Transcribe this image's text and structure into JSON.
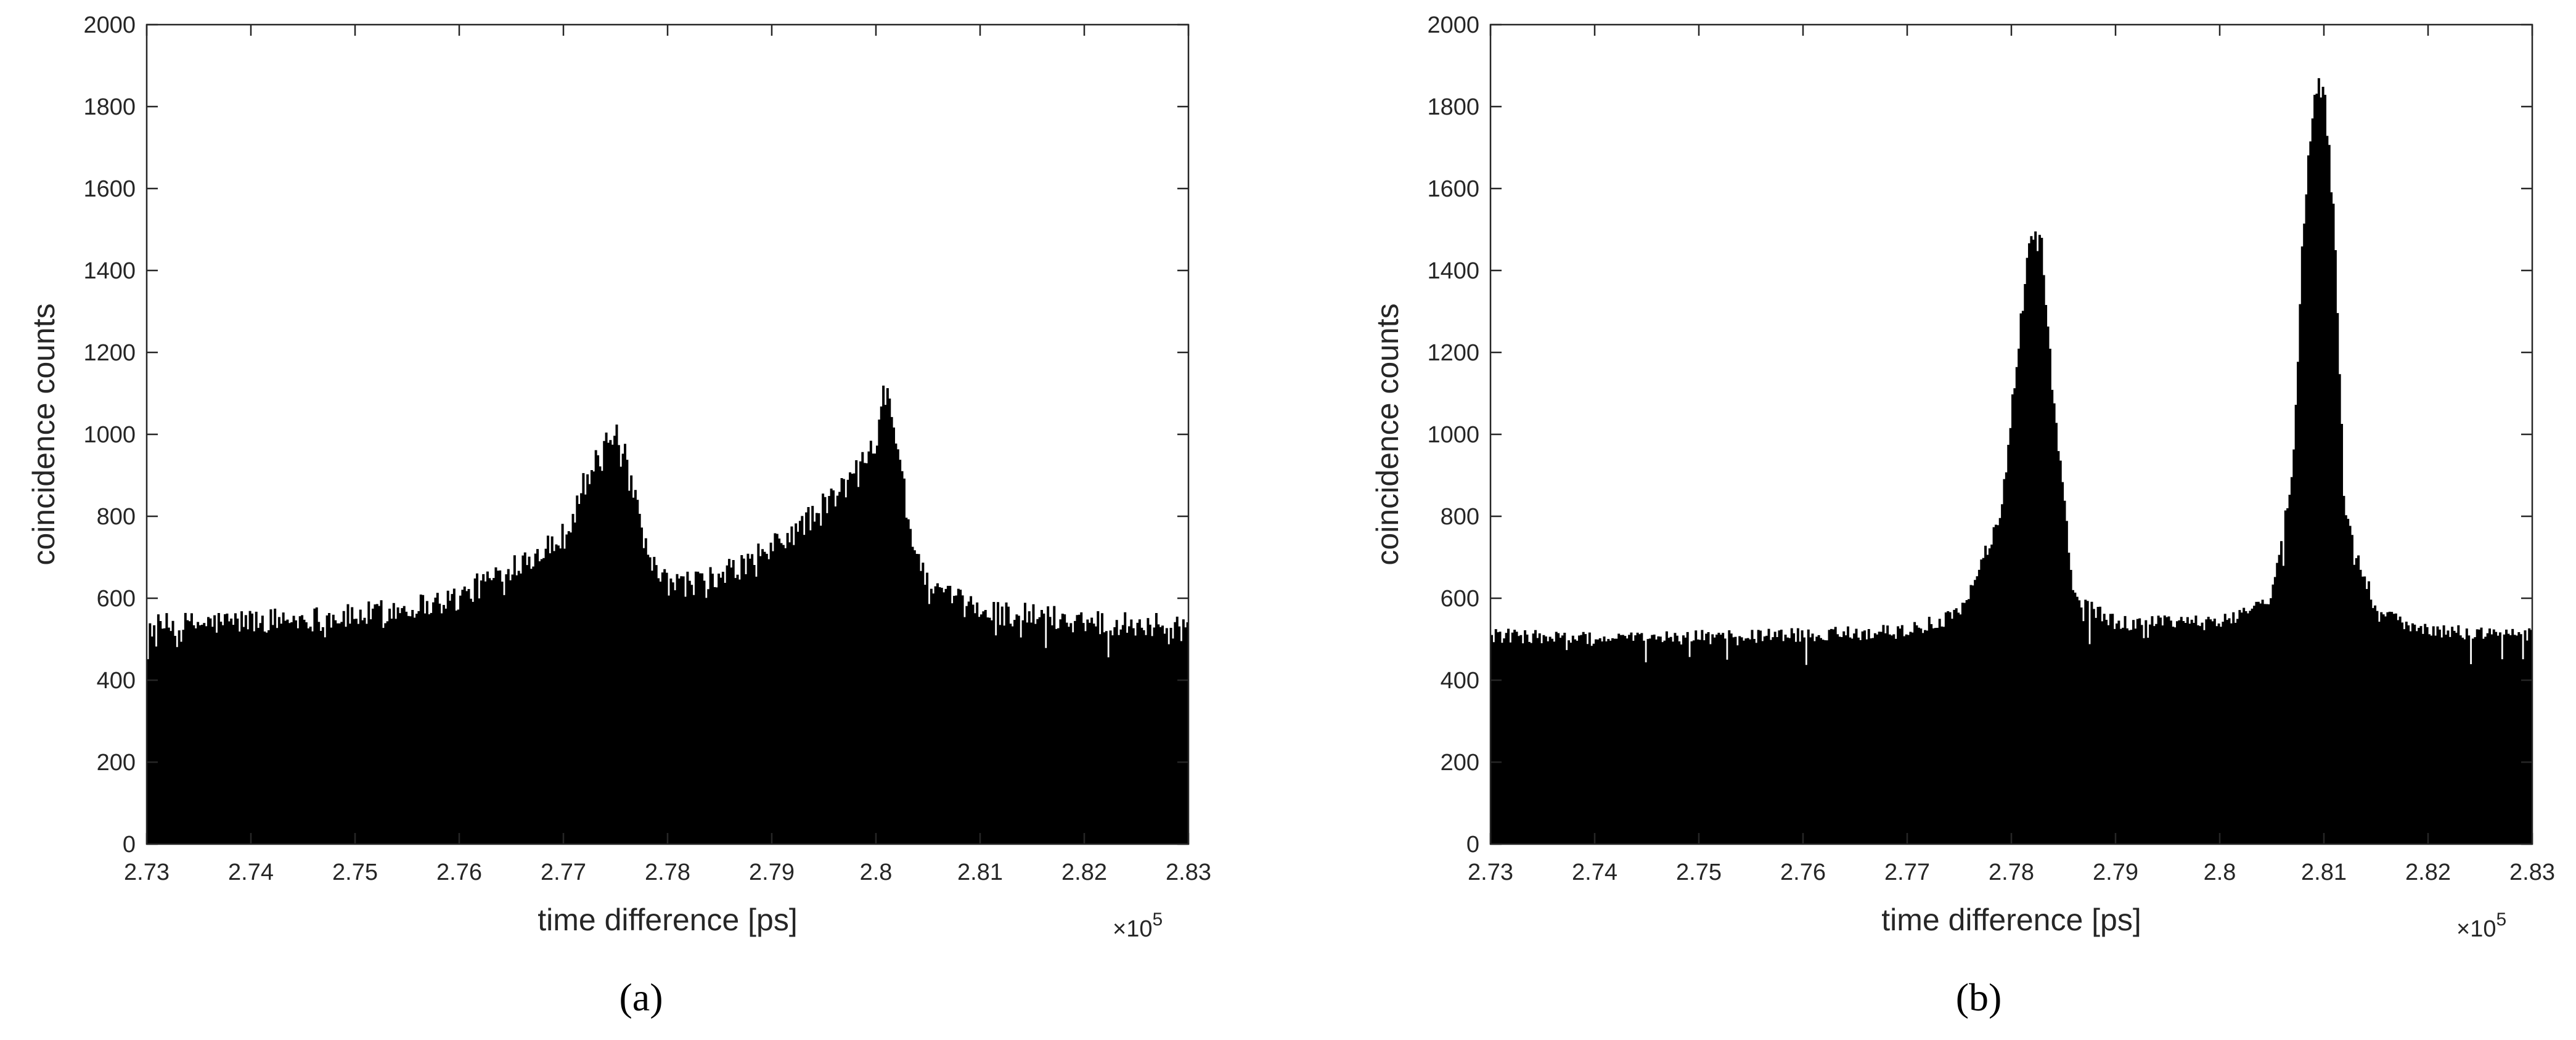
{
  "chart_data": [
    {
      "type": "bar",
      "panel_caption": "(a)",
      "xlabel": "time difference [ps]",
      "ylabel": "coincidence counts",
      "x_exponent": "×10",
      "x_exponent_power": "5",
      "xlim": [
        2.73,
        2.83
      ],
      "ylim": [
        0,
        2000
      ],
      "xticks": [
        "2.73",
        "2.74",
        "2.75",
        "2.76",
        "2.77",
        "2.78",
        "2.79",
        "2.8",
        "2.81",
        "2.82",
        "2.83"
      ],
      "yticks": [
        "0",
        "200",
        "400",
        "600",
        "800",
        "1000",
        "1200",
        "1400",
        "1600",
        "1800",
        "2000"
      ],
      "bin_width_e5ps": 0.0002,
      "baseline": 540,
      "series": [
        {
          "values_description_free": true,
          "x": [
            2.73,
            2.74,
            2.75,
            2.76,
            2.765,
            2.77,
            2.772,
            2.774,
            2.775,
            2.776,
            2.778,
            2.78,
            2.785,
            2.79,
            2.795,
            2.798,
            2.8,
            2.801,
            2.802,
            2.803,
            2.805,
            2.81,
            2.82,
            2.83
          ],
          "y": [
            530,
            545,
            555,
            600,
            680,
            750,
            880,
            960,
            990,
            930,
            700,
            630,
            650,
            720,
            820,
            900,
            1000,
            1160,
            980,
            800,
            620,
            570,
            545,
            530
          ]
        }
      ],
      "color": "#000000",
      "grid": false
    },
    {
      "type": "bar",
      "panel_caption": "(b)",
      "xlabel": "time difference [ps]",
      "ylabel": "coincidence counts",
      "x_exponent": "×10",
      "x_exponent_power": "5",
      "xlim": [
        2.73,
        2.83
      ],
      "ylim": [
        0,
        2000
      ],
      "xticks": [
        "2.73",
        "2.74",
        "2.75",
        "2.76",
        "2.77",
        "2.78",
        "2.79",
        "2.8",
        "2.81",
        "2.82",
        "2.83"
      ],
      "yticks": [
        "0",
        "200",
        "400",
        "600",
        "800",
        "1000",
        "1200",
        "1400",
        "1600",
        "1800",
        "2000"
      ],
      "bin_width_e5ps": 0.0002,
      "baseline": 500,
      "series": [
        {
          "x": [
            2.73,
            2.74,
            2.75,
            2.76,
            2.77,
            2.775,
            2.779,
            2.781,
            2.782,
            2.783,
            2.784,
            2.786,
            2.79,
            2.8,
            2.805,
            2.807,
            2.808,
            2.809,
            2.81,
            2.811,
            2.812,
            2.815,
            2.82,
            2.83
          ],
          "y": [
            510,
            500,
            505,
            510,
            520,
            560,
            800,
            1300,
            1500,
            1450,
            1100,
            600,
            540,
            540,
            600,
            900,
            1500,
            1820,
            1870,
            1500,
            800,
            570,
            520,
            510
          ]
        }
      ],
      "color": "#000000",
      "grid": false
    }
  ]
}
